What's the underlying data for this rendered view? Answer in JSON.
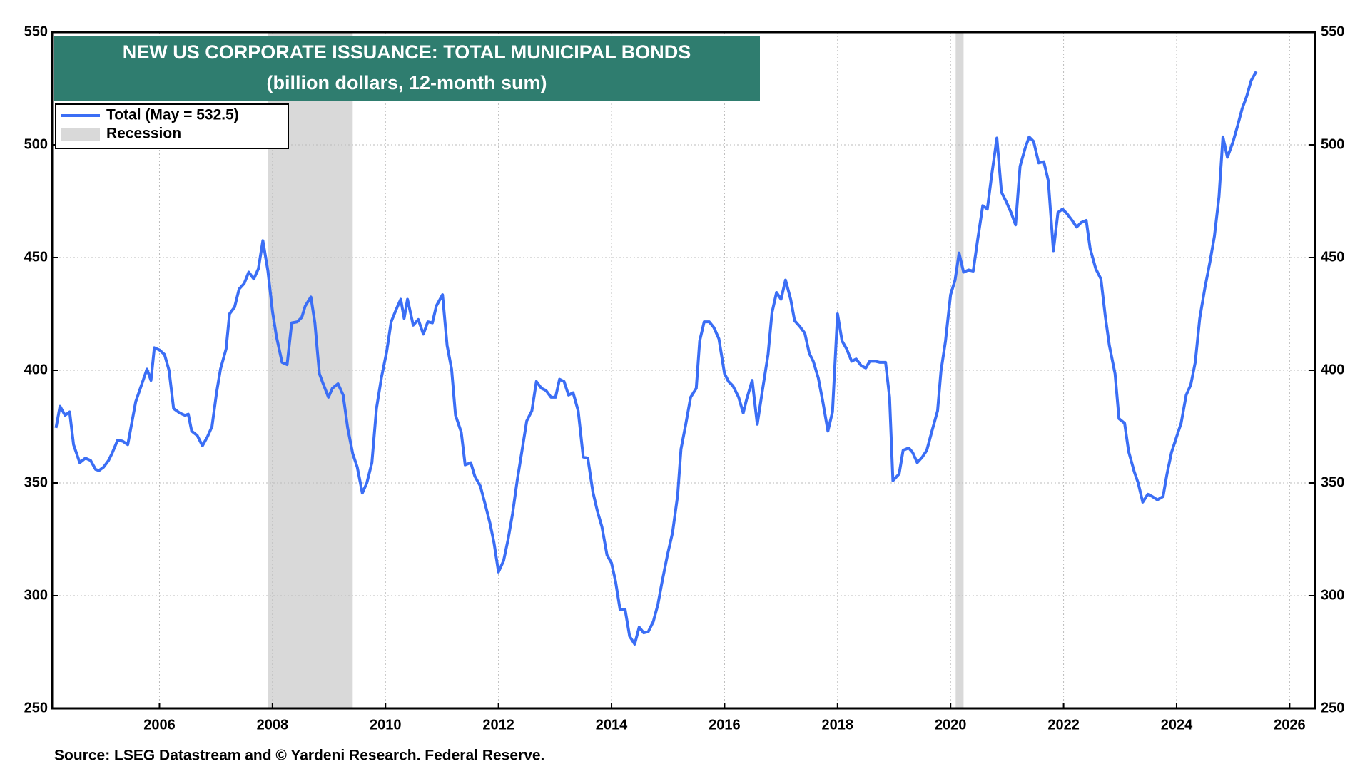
{
  "chart_data": {
    "type": "line",
    "title": "NEW US CORPORATE ISSUANCE: TOTAL MUNICIPAL BONDS",
    "subtitle": "(billion dollars, 12-month sum)",
    "source": "Source: LSEG Datastream and © Yardeni Research. Federal Reserve.",
    "xlim": [
      2004.1,
      2026.45
    ],
    "xticks": [
      2006,
      2008,
      2010,
      2012,
      2014,
      2016,
      2018,
      2020,
      2022,
      2024,
      2026
    ],
    "ylim": [
      250,
      550
    ],
    "yticks": [
      250,
      300,
      350,
      400,
      450,
      500,
      550
    ],
    "y2lim": [
      250,
      550
    ],
    "y2ticks": [
      250,
      300,
      350,
      400,
      450,
      500,
      550
    ],
    "grid": true,
    "legend": "upper left",
    "recession": {
      "name": "Recession",
      "color": "#d9d9d9",
      "spans": [
        [
          2007.92,
          2009.42
        ],
        [
          2020.09,
          2020.23
        ]
      ]
    },
    "x": [
      2004.17,
      2004.24,
      2004.33,
      2004.41,
      2004.48,
      2004.59,
      2004.69,
      2004.78,
      2004.87,
      2004.93,
      2005.01,
      2005.1,
      2005.16,
      2005.26,
      2005.35,
      2005.44,
      2005.58,
      2005.69,
      2005.78,
      2005.85,
      2005.91,
      2006.0,
      2006.09,
      2006.17,
      2006.25,
      2006.36,
      2006.45,
      2006.51,
      2006.57,
      2006.67,
      2006.76,
      2006.85,
      2006.93,
      2007.01,
      2007.08,
      2007.18,
      2007.24,
      2007.33,
      2007.41,
      2007.5,
      2007.58,
      2007.67,
      2007.75,
      2007.83,
      2007.92,
      2008.0,
      2008.07,
      2008.17,
      2008.26,
      2008.34,
      2008.44,
      2008.52,
      2008.58,
      2008.68,
      2008.75,
      2008.83,
      2008.89,
      2008.99,
      2009.06,
      2009.16,
      2009.25,
      2009.33,
      2009.42,
      2009.5,
      2009.59,
      2009.67,
      2009.76,
      2009.84,
      2009.93,
      2010.02,
      2010.1,
      2010.19,
      2010.27,
      2010.33,
      2010.39,
      2010.49,
      2010.58,
      2010.67,
      2010.75,
      2010.83,
      2010.9,
      2011.01,
      2011.09,
      2011.17,
      2011.24,
      2011.34,
      2011.41,
      2011.51,
      2011.58,
      2011.68,
      2011.77,
      2011.85,
      2011.92,
      2012.0,
      2012.09,
      2012.17,
      2012.25,
      2012.33,
      2012.42,
      2012.5,
      2012.59,
      2012.67,
      2012.76,
      2012.84,
      2012.93,
      2013.01,
      2013.08,
      2013.16,
      2013.24,
      2013.32,
      2013.41,
      2013.5,
      2013.58,
      2013.67,
      2013.75,
      2013.83,
      2013.92,
      2014.0,
      2014.07,
      2014.15,
      2014.24,
      2014.32,
      2014.41,
      2014.49,
      2014.57,
      2014.65,
      2014.74,
      2014.82,
      2014.89,
      2014.99,
      2015.08,
      2015.17,
      2015.23,
      2015.31,
      2015.4,
      2015.5,
      2015.56,
      2015.64,
      2015.73,
      2015.81,
      2015.9,
      2016.0,
      2016.07,
      2016.15,
      2016.25,
      2016.33,
      2016.39,
      2016.49,
      2016.58,
      2016.67,
      2016.77,
      2016.84,
      2016.92,
      2017.0,
      2017.08,
      2017.17,
      2017.24,
      2017.33,
      2017.42,
      2017.5,
      2017.57,
      2017.66,
      2017.74,
      2017.83,
      2017.91,
      2018.0,
      2018.08,
      2018.16,
      2018.25,
      2018.33,
      2018.42,
      2018.5,
      2018.57,
      2018.67,
      2018.75,
      2018.85,
      2018.92,
      2018.98,
      2019.09,
      2019.16,
      2019.26,
      2019.33,
      2019.41,
      2019.5,
      2019.58,
      2019.67,
      2019.77,
      2019.83,
      2019.91,
      2020.0,
      2020.08,
      2020.15,
      2020.23,
      2020.32,
      2020.4,
      2020.48,
      2020.57,
      2020.65,
      2020.73,
      2020.82,
      2020.9,
      2020.99,
      2021.07,
      2021.15,
      2021.23,
      2021.32,
      2021.39,
      2021.47,
      2021.56,
      2021.65,
      2021.73,
      2021.82,
      2021.9,
      2021.98,
      2022.06,
      2022.15,
      2022.23,
      2022.31,
      2022.4,
      2022.47,
      2022.57,
      2022.66,
      2022.74,
      2022.81,
      2022.91,
      2022.98,
      2023.08,
      2023.15,
      2023.25,
      2023.32,
      2023.4,
      2023.49,
      2023.57,
      2023.66,
      2023.76,
      2023.83,
      2023.91,
      2024.0,
      2024.08,
      2024.17,
      2024.25,
      2024.33,
      2024.41,
      2024.5,
      2024.59,
      2024.67,
      2024.75,
      2024.82,
      2024.9,
      2025.0,
      2025.08,
      2025.16,
      2025.24,
      2025.32,
      2025.41
    ],
    "series": [
      {
        "name": "Total (May = 532.5)",
        "color": "#3b6ef5",
        "values": [
          374.4,
          384,
          380,
          381.5,
          367,
          359,
          361,
          360,
          356,
          355.5,
          357,
          360,
          363,
          369,
          368.5,
          367,
          386,
          394,
          400.5,
          395.5,
          410,
          409,
          407,
          400,
          383,
          381,
          380,
          380.5,
          373,
          371,
          366.5,
          370.5,
          375,
          390,
          400.5,
          409.5,
          425,
          428,
          436,
          438.5,
          443.5,
          440.5,
          445,
          457.5,
          444,
          426,
          415,
          403.5,
          402.5,
          421,
          421.5,
          423.5,
          428.5,
          432.5,
          421,
          398.5,
          394.5,
          388,
          392,
          394,
          389,
          374.5,
          363,
          357,
          345.5,
          350,
          359,
          383,
          397,
          408,
          421.5,
          427,
          431.5,
          423,
          431.5,
          420,
          422.5,
          416,
          421.5,
          421,
          428.5,
          433.5,
          411,
          400.5,
          380,
          372.5,
          358,
          359,
          353,
          348.5,
          340,
          332,
          323.5,
          310.5,
          315.5,
          325,
          336.5,
          351,
          365,
          377.5,
          382,
          395,
          392,
          391,
          388,
          388,
          396,
          395,
          389,
          390,
          382,
          361.5,
          361,
          346,
          337.5,
          330.5,
          318,
          314.5,
          306.5,
          294,
          294,
          282,
          278.5,
          286,
          283.5,
          284,
          288.5,
          296,
          305.5,
          318,
          328,
          344.5,
          365,
          375.5,
          388,
          392,
          413,
          421.5,
          421.5,
          419,
          414,
          398.5,
          395,
          393,
          388,
          381,
          387,
          395.5,
          376,
          391,
          407,
          425.5,
          434.5,
          431.5,
          440,
          431.5,
          422,
          419.5,
          416.5,
          407.5,
          404,
          396.5,
          386,
          373,
          381.5,
          425,
          413,
          409.5,
          404,
          405,
          402,
          401,
          404,
          404,
          403.5,
          403.5,
          388,
          351,
          354,
          364.5,
          365.5,
          363.5,
          359,
          361.5,
          364.5,
          373,
          382,
          399.5,
          413,
          433.5,
          440,
          452,
          443.5,
          444.5,
          444,
          458,
          473,
          471.5,
          487,
          503,
          479,
          474.5,
          470,
          464.5,
          490.5,
          498.5,
          503.5,
          501.5,
          492,
          492.5,
          484,
          453,
          470,
          471.5,
          469.5,
          466.5,
          463.5,
          465.5,
          466.5,
          454,
          445,
          440.5,
          423.5,
          411,
          398.5,
          378.5,
          376.5,
          364,
          355,
          350,
          341.5,
          345,
          344,
          342.5,
          344,
          354,
          363.5,
          370.5,
          376.5,
          389,
          393.5,
          403.5,
          423,
          436.5,
          448,
          459.5,
          477,
          503.5,
          494.5,
          501.5,
          508.5,
          516,
          521.5,
          528.5,
          532.5
        ]
      }
    ]
  }
}
